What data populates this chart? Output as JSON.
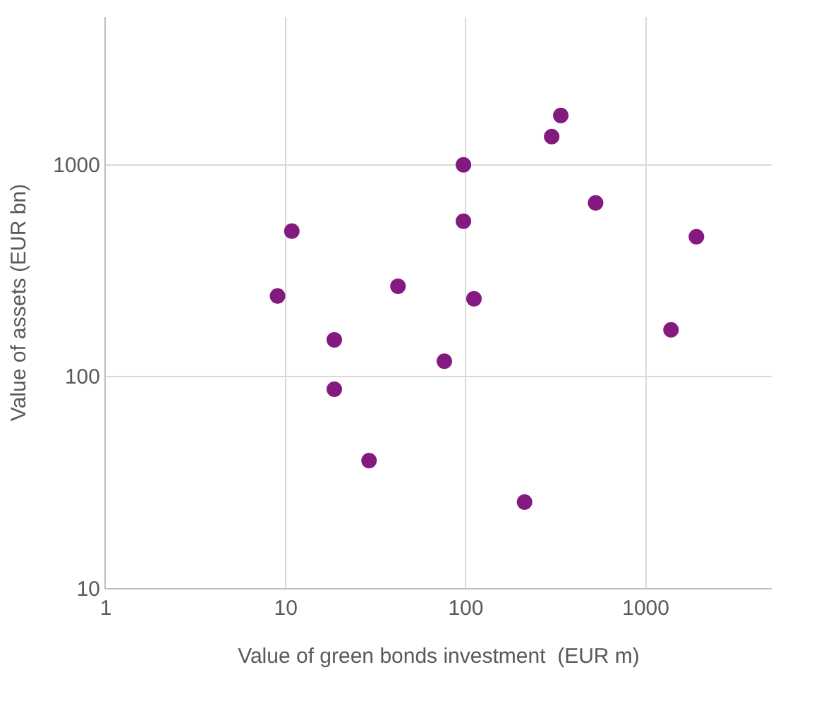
{
  "chart_data": {
    "type": "scatter",
    "xlabel": "Value of green bonds investment  (EUR m)",
    "ylabel": "Value of assets (EUR bn)",
    "log": "xy",
    "grid": true,
    "legend": false,
    "marker": "circle",
    "xlim": [
      1,
      5000
    ],
    "xticks": [
      1,
      10,
      100,
      1000
    ],
    "ylim": [
      10,
      5000
    ],
    "yticks": [
      10,
      100,
      1000
    ],
    "series": [
      {
        "color": "#84197f",
        "x": [
          9,
          10.8,
          18.6,
          18.6,
          29,
          42,
          76,
          97,
          97,
          111,
          212,
          300,
          337,
          526,
          1380,
          1910
        ],
        "values": [
          240,
          486,
          149,
          87,
          40,
          267,
          118,
          1000,
          541,
          233,
          25.5,
          1360,
          1710,
          661,
          166,
          457
        ]
      }
    ]
  }
}
